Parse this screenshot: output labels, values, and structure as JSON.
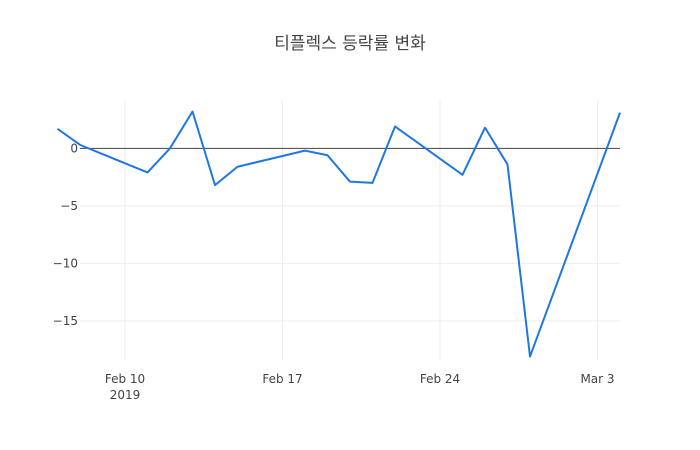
{
  "chart_data": {
    "type": "line",
    "title": "티플렉스 등락률 변화",
    "xlabel": "",
    "ylabel": "",
    "x": [
      "2019-02-07",
      "2019-02-08",
      "2019-02-11",
      "2019-02-12",
      "2019-02-13",
      "2019-02-14",
      "2019-02-15",
      "2019-02-18",
      "2019-02-19",
      "2019-02-20",
      "2019-02-21",
      "2019-02-22",
      "2019-02-25",
      "2019-02-26",
      "2019-02-27",
      "2019-02-28",
      "2019-03-04"
    ],
    "series": [
      {
        "values": [
          1.7,
          0.3,
          -2.1,
          0.0,
          3.2,
          -3.2,
          -1.6,
          -0.2,
          -0.6,
          -2.9,
          -3.0,
          1.9,
          -2.3,
          1.8,
          -1.4,
          -18.1,
          3.1
        ],
        "color": "#1f77e4"
      }
    ],
    "x_ticks": [
      {
        "date": "2019-02-10",
        "label": "Feb 10",
        "sublabel": "2019"
      },
      {
        "date": "2019-02-17",
        "label": "Feb 17",
        "sublabel": ""
      },
      {
        "date": "2019-02-24",
        "label": "Feb 24",
        "sublabel": ""
      },
      {
        "date": "2019-03-03",
        "label": "Mar 3",
        "sublabel": ""
      }
    ],
    "y_ticks": [
      {
        "value": 0,
        "label": "0"
      },
      {
        "value": -5,
        "label": "−5"
      },
      {
        "value": -10,
        "label": "−10"
      },
      {
        "value": -15,
        "label": "−15"
      }
    ],
    "xlim": [
      "2019-02-08",
      "2019-03-04"
    ],
    "ylim": [
      -18.4,
      4.2
    ],
    "grid": true,
    "zero_line": true,
    "legend": "none"
  }
}
